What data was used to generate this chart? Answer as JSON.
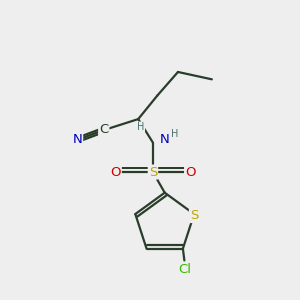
{
  "bg_color": "#eeeeee",
  "bond_color": "#2a3d2a",
  "bond_width": 1.6,
  "atom_colors": {
    "C": "#2a3d2a",
    "N": "#0000bb",
    "S_sulfonamide": "#bbaa00",
    "S_thiophene": "#bbaa00",
    "O": "#cc0000",
    "Cl": "#33bb00",
    "H": "#4a7070"
  },
  "font_size_main": 9.5,
  "font_size_small": 7.0
}
